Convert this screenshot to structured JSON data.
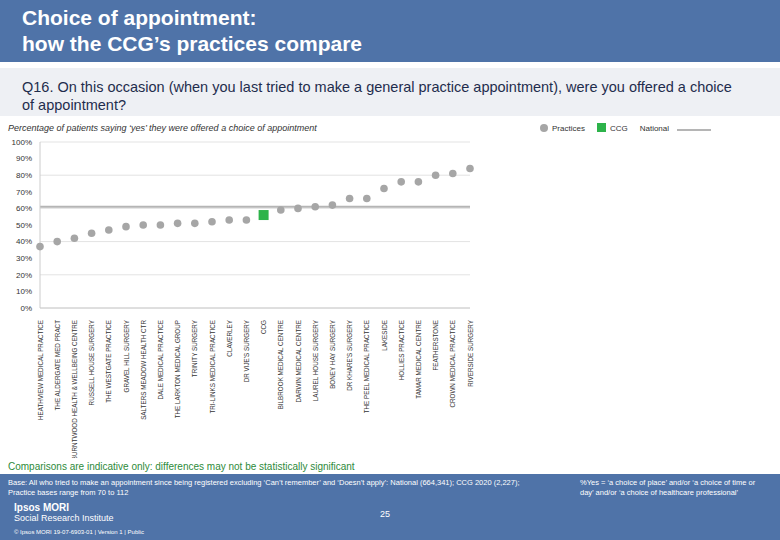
{
  "header": {
    "title_lines": [
      "Choice of appointment:",
      "how the CCG’s practices compare"
    ],
    "question": "Q16. On this occasion (when you last tried to make a general practice appointment), were you offered a choice of appointment?"
  },
  "chart_data": {
    "type": "scatter",
    "subtitle": "Percentage of patients saying ‘yes’ they were offered a choice of appointment",
    "categories": [
      "HEATHVIEW MEDICAL PRACTICE",
      "THE ALDERGATE MED PRACT",
      "BURNTWOOD HEALTH & WELLBEING CENTRE",
      "RUSSELL HOUSE SURGERY",
      "THE WESTGATE PRACTICE",
      "GRAVEL HILL SURGERY",
      "SALTERS MEADOW HEALTH CTR",
      "DALE MEDICAL PRACTICE",
      "THE LARKTON MEDICAL GROUP",
      "TRINITY SURGERY",
      "TRI-LINKS MEDICAL PRACTICE",
      "CLAVERLEY",
      "DR VIJE'S SURGERY",
      "CCG",
      "BILBROOK MEDICAL CENTRE",
      "DARWIN MEDICAL CENTRE",
      "LAUREL HOUSE SURGERY",
      "BONEY HAY SURGERY",
      "DR KHARE'S SURGERY",
      "THE PEEL MEDICAL PRACTICE",
      "LAKESIDE",
      "HOLLIES PRACTICE",
      "TAMAR MEDICAL CENTRE",
      "FEATHERSTONE",
      "CROWN MEDICAL PRACTICE",
      "RIVERSIDE SURGERY"
    ],
    "series": [
      {
        "name": "Practices",
        "color": "#a6a6a6",
        "marker": "circle",
        "values": [
          37,
          40,
          42,
          45,
          47,
          49,
          50,
          50,
          51,
          51,
          52,
          53,
          53,
          null,
          59,
          60,
          61,
          62,
          66,
          66,
          72,
          76,
          76,
          80,
          81,
          84
        ]
      },
      {
        "name": "CCG",
        "color": "#2db34a",
        "marker": "square",
        "values": [
          null,
          null,
          null,
          null,
          null,
          null,
          null,
          null,
          null,
          null,
          null,
          null,
          null,
          56,
          null,
          null,
          null,
          null,
          null,
          null,
          null,
          null,
          null,
          null,
          null,
          null
        ]
      },
      {
        "name": "National",
        "color": "#b5b5b5",
        "type": "line",
        "marker": "none",
        "values": [
          61,
          61,
          61,
          61,
          61,
          61,
          61,
          61,
          61,
          61,
          61,
          61,
          61,
          61,
          61,
          61,
          61,
          61,
          61,
          61,
          61,
          61,
          61,
          61,
          61,
          61
        ]
      }
    ],
    "ylim": [
      0,
      100
    ],
    "yticks": [
      {
        "value": 0,
        "label": "0%"
      },
      {
        "value": 10,
        "label": "10%"
      },
      {
        "value": 20,
        "label": "20%"
      },
      {
        "value": 30,
        "label": "30%"
      },
      {
        "value": 40,
        "label": "40%"
      },
      {
        "value": 50,
        "label": "50%"
      },
      {
        "value": 60,
        "label": "60%"
      },
      {
        "value": 70,
        "label": "70%"
      },
      {
        "value": 80,
        "label": "80%"
      },
      {
        "value": 90,
        "label": "90%"
      },
      {
        "value": 100,
        "label": "100%"
      }
    ],
    "grid": true,
    "legend": "top-right"
  },
  "footer": {
    "note": "Comparisons are indicative only: differences may not be statistically significant",
    "base": "Base: All who tried to make an appointment since being registered excluding ‘Can’t remember’ and ‘Doesn’t apply’: National (664,341); CCG 2020 (2,227); Practice bases range from 70 to 112",
    "definition": "%Yes = ‘a choice of place’ and/or ‘a choice of time or day’ and/or ‘a choice of healthcare professional’",
    "page": "25",
    "brand_lines": [
      "Ipsos MORI",
      "Social Research Institute"
    ],
    "copyright": "© Ipsos MORI    19-07-6903-01 | Version 1 | Public"
  }
}
